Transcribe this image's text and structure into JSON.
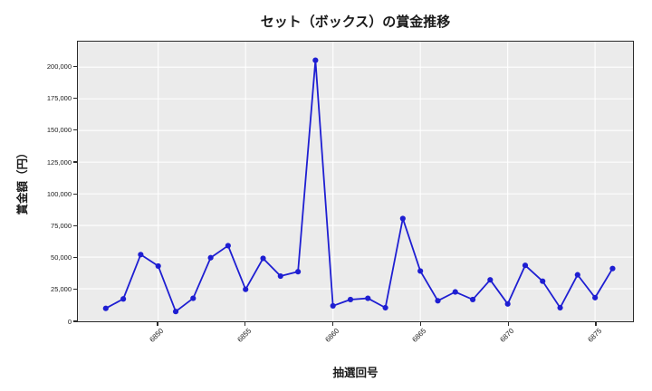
{
  "chart_data": {
    "type": "line",
    "title": "セット（ボックス）の賞金推移",
    "xlabel": "抽選回号",
    "ylabel": "賞金額（円）",
    "x": [
      6847,
      6848,
      6849,
      6850,
      6851,
      6852,
      6853,
      6854,
      6855,
      6856,
      6857,
      6858,
      6859,
      6860,
      6861,
      6862,
      6863,
      6864,
      6865,
      6866,
      6867,
      6868,
      6869,
      6870,
      6871,
      6872,
      6873,
      6874,
      6875,
      6876
    ],
    "values": [
      9500,
      17000,
      52000,
      43000,
      7000,
      17500,
      49500,
      59000,
      24500,
      49000,
      35000,
      38500,
      205500,
      11500,
      16500,
      17500,
      10000,
      80500,
      39000,
      15500,
      22500,
      16500,
      32000,
      13000,
      43500,
      31000,
      10000,
      36000,
      18000,
      41000
    ],
    "xticks": [
      6850,
      6855,
      6860,
      6865,
      6870,
      6875
    ],
    "yticks": [
      0,
      25000,
      50000,
      75000,
      100000,
      125000,
      150000,
      175000,
      200000
    ],
    "ylim": [
      0,
      220000
    ],
    "grid": true,
    "legend": "none",
    "line_color": "#1e1ed2",
    "marker_color": "#1e1ed2",
    "plot_bg": "#ebebeb",
    "grid_color": "#ffffff"
  }
}
